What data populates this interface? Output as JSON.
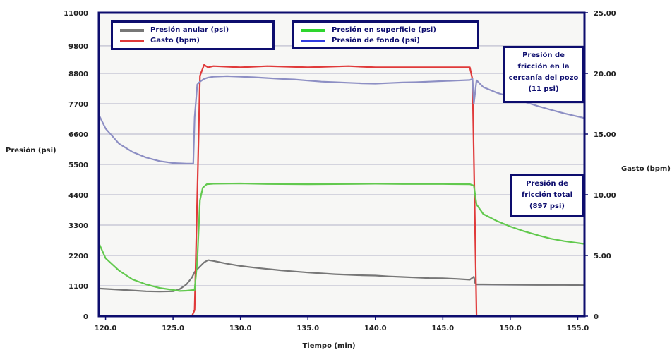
{
  "chart_data": {
    "type": "line",
    "title": "",
    "xlabel": "Tiempo (min)",
    "ylabel_left": "Presión (psi)",
    "ylabel_right": "Gasto (bpm)",
    "xlim": [
      119.5,
      155.5
    ],
    "ylim_left": [
      0,
      11000
    ],
    "ylim_right": [
      0,
      25
    ],
    "x_ticks": [
      "120.0",
      "125.0",
      "130.0",
      "135.0",
      "140.0",
      "145.0",
      "150.0",
      "155.0"
    ],
    "y_left_ticks": [
      "11000",
      "9800",
      "8800",
      "7700",
      "6600",
      "5500",
      "4400",
      "3300",
      "2200",
      "1100",
      "0"
    ],
    "y_right_ticks": [
      "25.00",
      "20.00",
      "15.00",
      "10.00",
      "5.00",
      "0"
    ],
    "grid": true,
    "series": [
      {
        "name": "Presión anular (psi)",
        "axis": "left",
        "color": "#777777",
        "x": [
          119.5,
          121,
          122,
          123,
          124,
          125,
          125.5,
          126,
          126.4,
          126.6,
          126.8,
          127,
          127.3,
          127.6,
          128,
          129,
          130,
          131,
          132,
          133,
          134,
          135,
          136,
          137,
          138,
          139,
          140,
          141,
          142,
          143,
          144,
          145,
          146,
          147,
          147.3,
          147.4,
          147.5,
          148,
          150,
          152,
          154,
          155.5
        ],
        "values": [
          1000,
          960,
          930,
          900,
          890,
          900,
          980,
          1150,
          1400,
          1600,
          1700,
          1800,
          1950,
          2030,
          2000,
          1900,
          1820,
          1760,
          1710,
          1660,
          1620,
          1580,
          1550,
          1520,
          1500,
          1480,
          1470,
          1440,
          1420,
          1400,
          1380,
          1370,
          1350,
          1320,
          1430,
          1200,
          1150,
          1150,
          1140,
          1130,
          1130,
          1120
        ]
      },
      {
        "name": "Gasto (bpm)",
        "axis": "right",
        "color": "#e03a3a",
        "x": [
          126.4,
          126.6,
          126.8,
          127,
          127.3,
          127.6,
          128,
          130,
          132,
          135,
          138,
          140,
          142,
          145,
          147,
          147.2,
          147.35,
          147.5
        ],
        "values": [
          0,
          0.5,
          10,
          19.8,
          20.7,
          20.5,
          20.6,
          20.5,
          20.6,
          20.5,
          20.6,
          20.5,
          20.5,
          20.5,
          20.5,
          19.5,
          10,
          0
        ]
      },
      {
        "name": "Presión en superficie (psi)",
        "axis": "left",
        "color": "#62c94e",
        "x": [
          119.5,
          120,
          121,
          122,
          123,
          124,
          125,
          125.5,
          126,
          126.6,
          126.8,
          127,
          127.2,
          127.5,
          128,
          130,
          132,
          135,
          138,
          140,
          142,
          145,
          147,
          147.3,
          147.5,
          148,
          149,
          150,
          151,
          152,
          153,
          154,
          155.5
        ],
        "values": [
          2650,
          2100,
          1650,
          1330,
          1150,
          1020,
          950,
          910,
          920,
          950,
          2000,
          4200,
          4650,
          4780,
          4800,
          4810,
          4790,
          4780,
          4790,
          4800,
          4790,
          4790,
          4780,
          4730,
          4050,
          3700,
          3450,
          3250,
          3080,
          2940,
          2810,
          2720,
          2620
        ]
      },
      {
        "name": "Presión de fondo (psi)",
        "axis": "left",
        "color": "#8d8fc4",
        "x": [
          119.5,
          120,
          121,
          122,
          123,
          124,
          125,
          126,
          126.5,
          126.6,
          126.8,
          127,
          127.3,
          127.6,
          128,
          129,
          130,
          131,
          132,
          133,
          134,
          135,
          136,
          137,
          138,
          139,
          140,
          141,
          142,
          143,
          144,
          145,
          146,
          147,
          147.2,
          147.3,
          147.5,
          148,
          149,
          150,
          151,
          152,
          153,
          154,
          155.5
        ],
        "values": [
          7300,
          6800,
          6250,
          5950,
          5750,
          5620,
          5550,
          5530,
          5530,
          7200,
          8400,
          8500,
          8600,
          8650,
          8680,
          8700,
          8680,
          8660,
          8630,
          8600,
          8580,
          8540,
          8500,
          8480,
          8460,
          8440,
          8430,
          8450,
          8470,
          8480,
          8500,
          8520,
          8540,
          8560,
          8600,
          7700,
          8550,
          8300,
          8100,
          7950,
          7780,
          7620,
          7480,
          7350,
          7180
        ]
      }
    ],
    "annotations": [
      {
        "lines": [
          "Presión de",
          "fricción en la",
          "cercanía del pozo",
          "(11 psi)"
        ]
      },
      {
        "lines": [
          "Presión de",
          "fricción total",
          "(897 psi)"
        ]
      }
    ]
  }
}
